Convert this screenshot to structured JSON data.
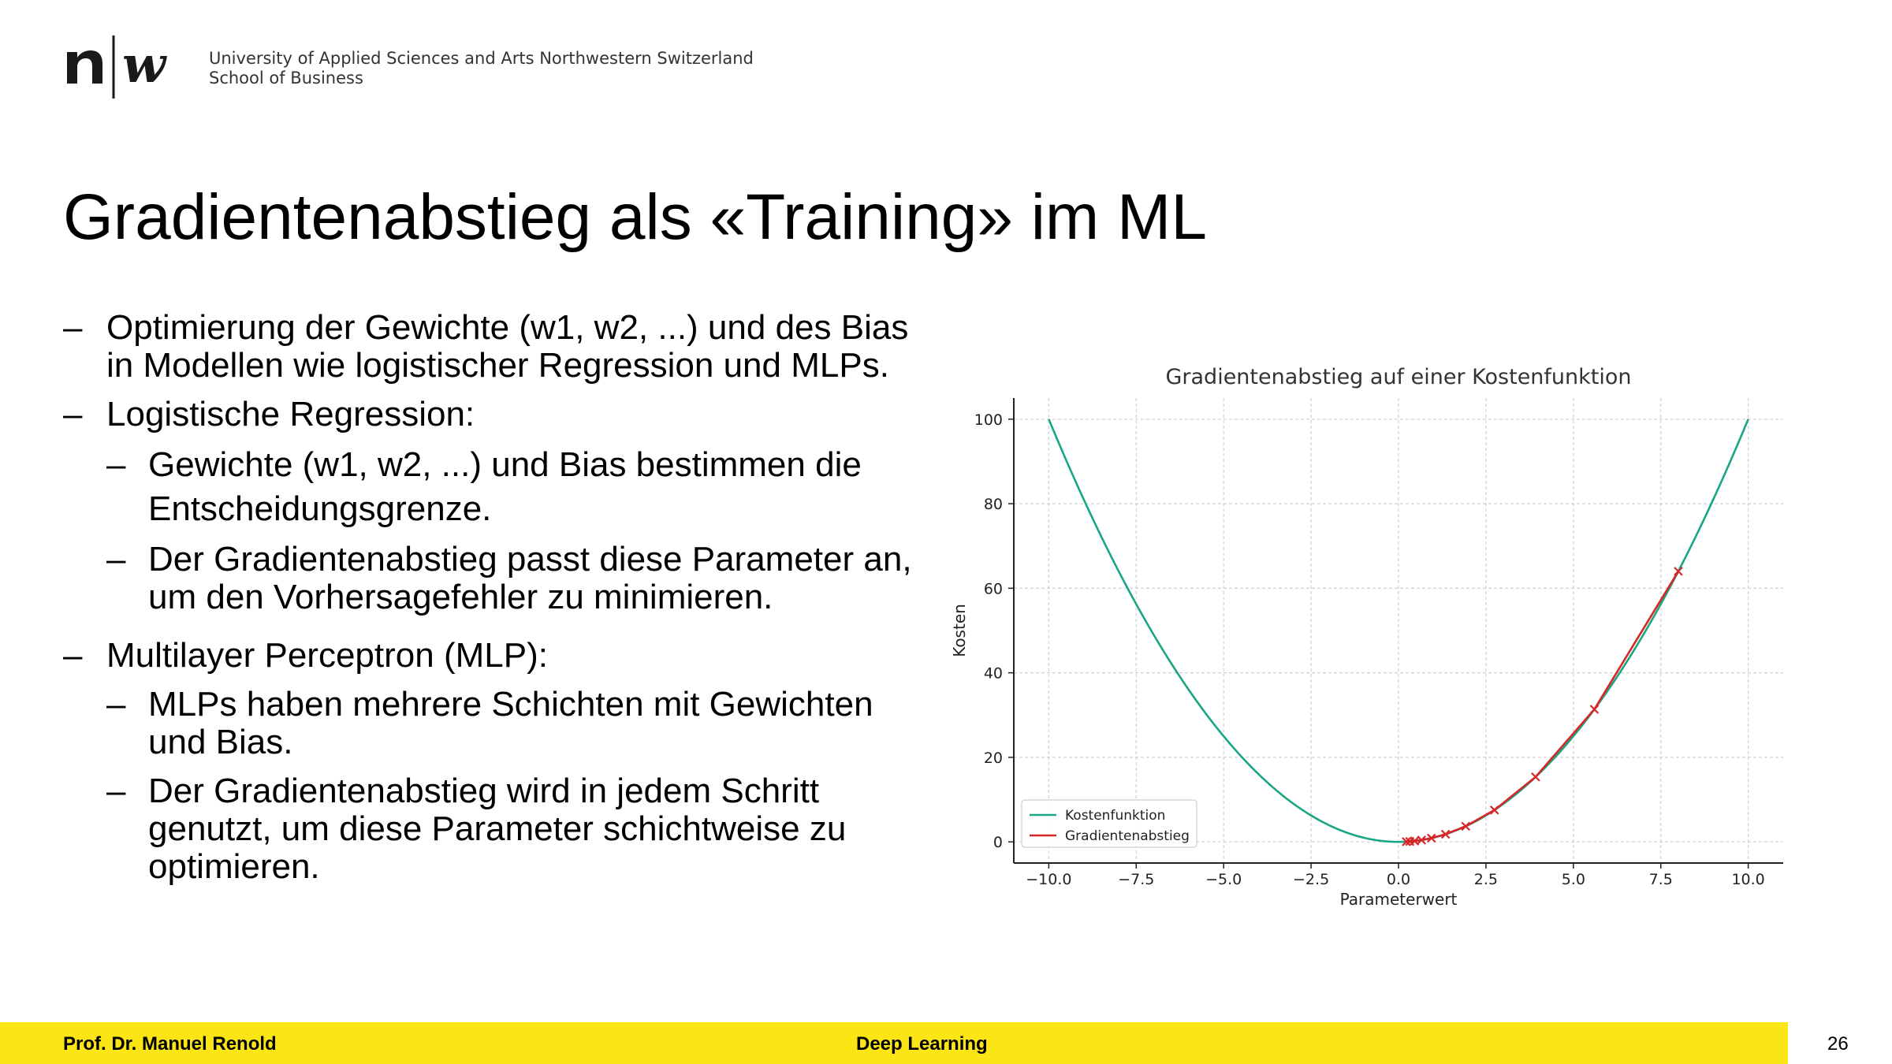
{
  "header": {
    "logo_text": "n|w",
    "institution_line1": "University of Applied Sciences and Arts Northwestern Switzerland",
    "institution_line2": "School of Business"
  },
  "slide": {
    "title": "Gradientenabstieg als «Training» im ML",
    "bullets": [
      {
        "level": 1,
        "text": "Optimierung der Gewichte (w1, w2, ...) und des Bias in Modellen wie logistischer Regression und MLPs."
      },
      {
        "level": 1,
        "text": "Logistische Regression:"
      },
      {
        "level": 2,
        "text": "Gewichte (w1, w2, ...) und Bias bestimmen die Entscheidungsgrenze."
      },
      {
        "level": 2,
        "text": "Der Gradientenabstieg passt diese Parameter an, um den Vorhersagefehler zu minimieren."
      },
      {
        "level": 1,
        "text": "Multilayer Perceptron (MLP):"
      },
      {
        "level": 2,
        "text": "MLPs haben mehrere Schichten mit Gewichten und Bias."
      },
      {
        "level": 2,
        "text": "Der Gradientenabstieg wird in jedem Schritt genutzt, um diese Parameter schichtweise zu optimieren."
      }
    ]
  },
  "chart_data": {
    "type": "line",
    "title": "Gradientenabstieg auf einer Kostenfunktion",
    "xlabel": "Parameterwert",
    "ylabel": "Kosten",
    "xlim": [
      -11,
      11
    ],
    "ylim": [
      -5,
      105
    ],
    "xticks": [
      -10,
      -7.5,
      -5,
      -2.5,
      0,
      2.5,
      5,
      7.5,
      10
    ],
    "xtick_labels": [
      "−10.0",
      "−7.5",
      "−5.0",
      "−2.5",
      "0.0",
      "2.5",
      "5.0",
      "7.5",
      "10.0"
    ],
    "yticks": [
      0,
      20,
      40,
      60,
      80,
      100
    ],
    "ytick_labels": [
      "0",
      "20",
      "40",
      "60",
      "80",
      "100"
    ],
    "grid": true,
    "legend_position": "lower-left",
    "series": [
      {
        "name": "Kostenfunktion",
        "color": "#1aa585",
        "function": "x^2",
        "x_range": [
          -10,
          10
        ]
      },
      {
        "name": "Gradientenabstieg",
        "color": "#d62728",
        "marker": "x",
        "x": [
          8.0,
          5.6,
          3.92,
          2.744,
          1.921,
          1.345,
          0.941,
          0.659,
          0.461,
          0.323,
          0.226
        ],
        "y": [
          64.0,
          31.36,
          15.37,
          7.53,
          3.69,
          1.81,
          0.89,
          0.43,
          0.21,
          0.1,
          0.05
        ]
      }
    ]
  },
  "footer": {
    "author": "Prof. Dr. Manuel Renold",
    "course": "Deep Learning",
    "page": "26"
  }
}
